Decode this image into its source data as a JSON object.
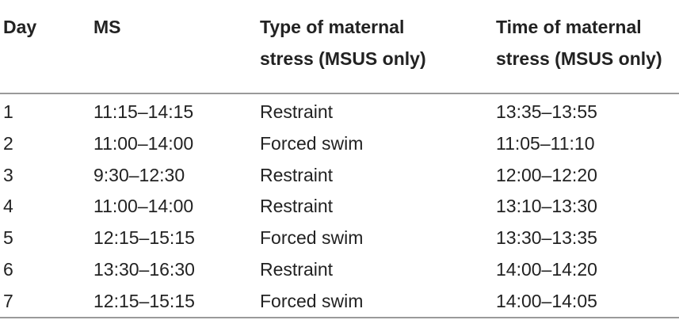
{
  "table": {
    "headers": {
      "day": "Day",
      "ms": "MS",
      "type_line1": "Type of maternal",
      "type_line2": "stress (MSUS only)",
      "time_line1": "Time of maternal",
      "time_line2": "stress (MSUS only)"
    },
    "rows": [
      {
        "day": "1",
        "ms": "11:15–14:15",
        "type": "Restraint",
        "time": "13:35–13:55"
      },
      {
        "day": "2",
        "ms": "11:00–14:00",
        "type": "Forced swim",
        "time": "11:05–11:10"
      },
      {
        "day": "3",
        "ms": "9:30–12:30",
        "type": "Restraint",
        "time": "12:00–12:20"
      },
      {
        "day": "4",
        "ms": "11:00–14:00",
        "type": "Restraint",
        "time": "13:10–13:30"
      },
      {
        "day": "5",
        "ms": "12:15–15:15",
        "type": "Forced swim",
        "time": "13:30–13:35"
      },
      {
        "day": "6",
        "ms": "13:30–16:30",
        "type": "Restraint",
        "time": "14:00–14:20"
      },
      {
        "day": "7",
        "ms": "12:15–15:15",
        "type": "Forced swim",
        "time": "14:00–14:05"
      }
    ]
  }
}
